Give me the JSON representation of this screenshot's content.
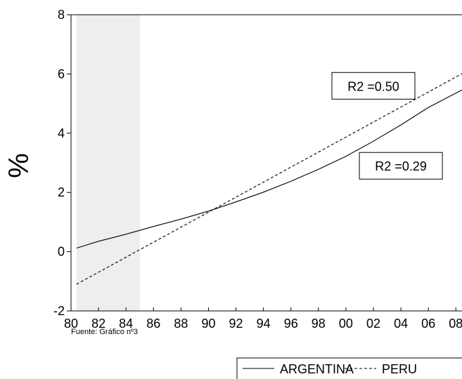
{
  "chart_data": {
    "type": "line",
    "ylabel": "%",
    "source_note": "Fuente: Gráfico nº3",
    "x_ticks": [
      "80",
      "82",
      "84",
      "86",
      "88",
      "90",
      "92",
      "94",
      "96",
      "98",
      "00",
      "02",
      "04",
      "06",
      "08"
    ],
    "xlim": [
      1980,
      2008.6
    ],
    "ylim": [
      -2,
      8
    ],
    "y_ticks": [
      -2,
      0,
      2,
      4,
      6,
      8
    ],
    "shaded_region": {
      "x_start": 1980.4,
      "x_end": 1985,
      "color": "#eeeeee"
    },
    "series": [
      {
        "name": "ARGENTINA",
        "style": "solid",
        "color": "#000000",
        "x": [
          1980.4,
          1982,
          1984,
          1986,
          1988,
          1990,
          1992,
          1994,
          1996,
          1998,
          2000,
          2002,
          2004,
          2006,
          2008.6
        ],
        "y": [
          0.12,
          0.35,
          0.59,
          0.85,
          1.1,
          1.37,
          1.68,
          2.01,
          2.38,
          2.78,
          3.22,
          3.73,
          4.28,
          4.87,
          5.5
        ]
      },
      {
        "name": "PERU",
        "style": "dashed",
        "color": "#000000",
        "x": [
          1980.4,
          2008.6
        ],
        "y": [
          -1.1,
          6.05
        ]
      }
    ],
    "annotations": [
      {
        "text": "R2 =0.50",
        "x": 2002,
        "y": 5.6
      },
      {
        "text": "R2 =0.29",
        "x": 2004,
        "y": 2.9
      }
    ],
    "legend": {
      "position": "bottom-right"
    }
  }
}
